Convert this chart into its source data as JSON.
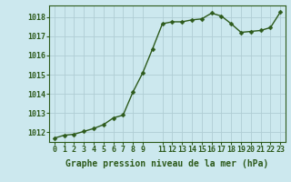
{
  "x": [
    0,
    1,
    2,
    3,
    4,
    5,
    6,
    7,
    8,
    9,
    10,
    11,
    12,
    13,
    14,
    15,
    16,
    17,
    18,
    19,
    20,
    21,
    22,
    23
  ],
  "y": [
    1011.7,
    1011.85,
    1011.9,
    1012.05,
    1012.2,
    1012.4,
    1012.75,
    1012.9,
    1014.1,
    1015.1,
    1016.35,
    1017.65,
    1017.75,
    1017.75,
    1017.85,
    1017.9,
    1018.2,
    1018.05,
    1017.65,
    1017.2,
    1017.25,
    1017.3,
    1017.45,
    1018.25
  ],
  "line_color": "#2d5a1b",
  "marker": "D",
  "marker_size": 2.5,
  "bg_color": "#cce8ee",
  "grid_color": "#b0cdd4",
  "xlabel": "Graphe pression niveau de la mer (hPa)",
  "ylim": [
    1011.5,
    1018.6
  ],
  "yticks": [
    1012,
    1013,
    1014,
    1015,
    1016,
    1017,
    1018
  ],
  "xticks": [
    0,
    1,
    2,
    3,
    4,
    5,
    6,
    7,
    8,
    9,
    11,
    12,
    13,
    14,
    15,
    16,
    17,
    18,
    19,
    20,
    21,
    22,
    23
  ],
  "xtick_labels": [
    "0",
    "1",
    "2",
    "3",
    "4",
    "5",
    "6",
    "7",
    "8",
    "9",
    "11",
    "12",
    "13",
    "14",
    "15",
    "16",
    "17",
    "18",
    "19",
    "20",
    "21",
    "22",
    "23"
  ],
  "label_color": "#2d5a1b",
  "xlabel_fontsize": 7.0,
  "tick_fontsize": 6.0,
  "line_width": 1.0
}
